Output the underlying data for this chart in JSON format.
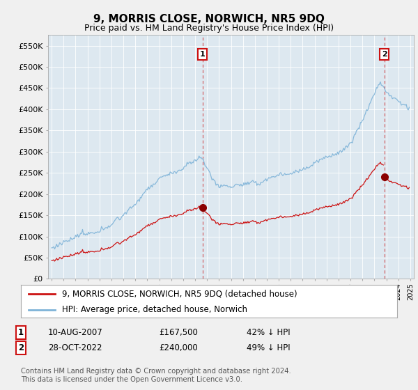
{
  "title": "9, MORRIS CLOSE, NORWICH, NR5 9DQ",
  "subtitle": "Price paid vs. HM Land Registry's House Price Index (HPI)",
  "hpi_color": "#7eb3d8",
  "price_color": "#cc1111",
  "dot_color": "#8b0000",
  "bg_color": "#dde8f0",
  "fig_bg": "#f0f0f0",
  "ylim": [
    0,
    575000
  ],
  "yticks": [
    0,
    50000,
    100000,
    150000,
    200000,
    250000,
    300000,
    350000,
    400000,
    450000,
    500000,
    550000
  ],
  "ytick_labels": [
    "£0",
    "£50K",
    "£100K",
    "£150K",
    "£200K",
    "£250K",
    "£300K",
    "£350K",
    "£400K",
    "£450K",
    "£500K",
    "£550K"
  ],
  "t1": 2007.62,
  "t2": 2022.83,
  "p1": 167500,
  "p2": 240000,
  "annotation1": {
    "date": "10-AUG-2007",
    "price": "£167,500",
    "pct": "42% ↓ HPI"
  },
  "annotation2": {
    "date": "28-OCT-2022",
    "price": "£240,000",
    "pct": "49% ↓ HPI"
  },
  "legend_line1": "9, MORRIS CLOSE, NORWICH, NR5 9DQ (detached house)",
  "legend_line2": "HPI: Average price, detached house, Norwich",
  "footer": "Contains HM Land Registry data © Crown copyright and database right 2024.\nThis data is licensed under the Open Government Licence v3.0."
}
